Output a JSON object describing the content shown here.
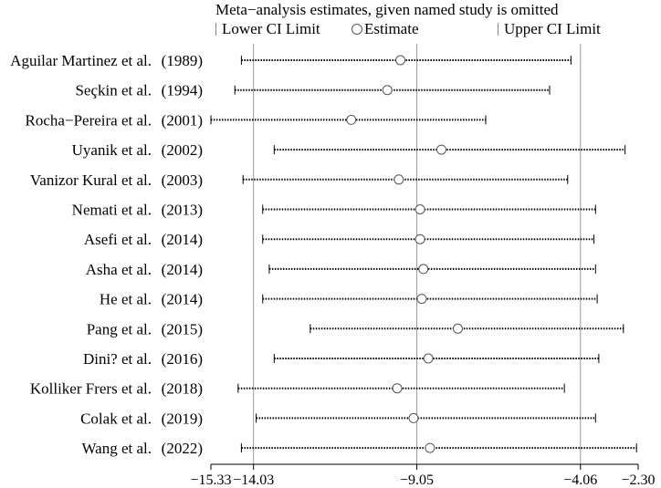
{
  "chart_data": {
    "type": "forest",
    "title": "Meta−analysis estimates, given named study is omitted",
    "legend": {
      "lower": "Lower CI Limit",
      "estimate": "Estimate",
      "upper": "Upper CI Limit"
    },
    "x_ticks": [
      {
        "value": -15.33,
        "label": "−15.33"
      },
      {
        "value": -14.03,
        "label": "−14.03"
      },
      {
        "value": -9.05,
        "label": "−9.05"
      },
      {
        "value": -4.06,
        "label": "−4.06"
      },
      {
        "value": -2.3,
        "label": "−2.30"
      }
    ],
    "xlim": [
      -15.33,
      -2.3
    ],
    "reference_lines": {
      "lower": -14.03,
      "estimate": -9.05,
      "upper": -4.06
    },
    "studies": [
      {
        "name": "Aguilar Martinez et al.",
        "year": "(1989)",
        "lower": -14.4,
        "estimate": -9.55,
        "upper": -4.35
      },
      {
        "name": "Seçkin et al.",
        "year": "(1994)",
        "lower": -14.6,
        "estimate": -9.95,
        "upper": -5.0
      },
      {
        "name": "Rocha−Pereira et al.",
        "year": "(2001)",
        "lower": -15.33,
        "estimate": -11.05,
        "upper": -6.95
      },
      {
        "name": "Uyanik et al.",
        "year": "(2002)",
        "lower": -13.4,
        "estimate": -8.3,
        "upper": -2.7
      },
      {
        "name": "Vanizor Kural et al.",
        "year": "(2003)",
        "lower": -14.35,
        "estimate": -9.6,
        "upper": -4.45
      },
      {
        "name": "Nemati et al.",
        "year": "(2013)",
        "lower": -13.75,
        "estimate": -8.95,
        "upper": -3.6
      },
      {
        "name": "Asefi et al.",
        "year": "(2014)",
        "lower": -13.75,
        "estimate": -8.95,
        "upper": -3.65
      },
      {
        "name": "Asha et al.",
        "year": "(2014)",
        "lower": -13.55,
        "estimate": -8.85,
        "upper": -3.6
      },
      {
        "name": "He et al.",
        "year": "(2014)",
        "lower": -13.75,
        "estimate": -8.9,
        "upper": -3.55
      },
      {
        "name": "Pang et al.",
        "year": "(2015)",
        "lower": -12.3,
        "estimate": -7.8,
        "upper": -2.75
      },
      {
        "name": "Dini? et al.",
        "year": "(2016)",
        "lower": -13.4,
        "estimate": -8.7,
        "upper": -3.5
      },
      {
        "name": "Kolliker Frers et al.",
        "year": "(2018)",
        "lower": -14.5,
        "estimate": -9.65,
        "upper": -4.55
      },
      {
        "name": "Colak et al.",
        "year": "(2019)",
        "lower": -13.95,
        "estimate": -9.15,
        "upper": -3.6
      },
      {
        "name": "Wang et al.",
        "year": "(2022)",
        "lower": -14.4,
        "estimate": -8.65,
        "upper": -2.35
      }
    ]
  }
}
